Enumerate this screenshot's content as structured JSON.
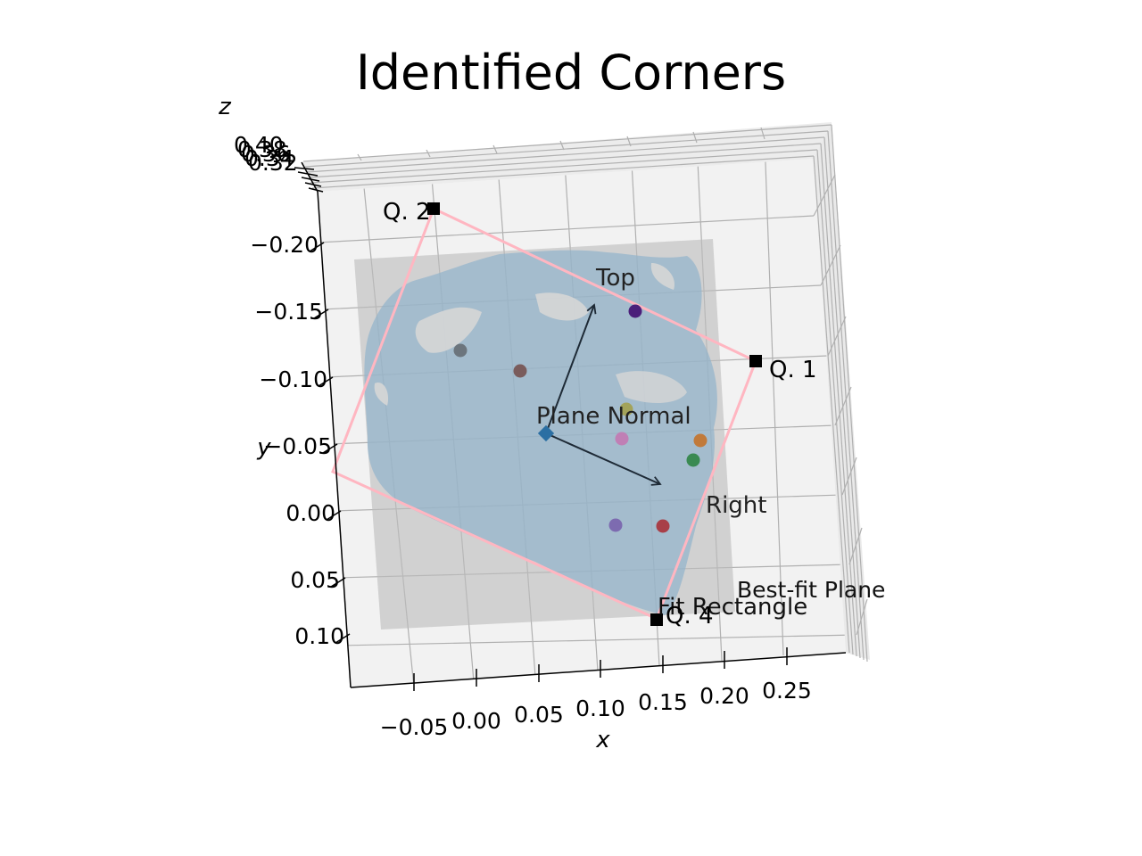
{
  "chart_data": {
    "type": "scatter",
    "projection": "3d",
    "title": "Identified Corners",
    "xlabel": "x",
    "ylabel": "y",
    "zlabel": "z",
    "x_ticks": [
      "−0.05",
      "0.00",
      "0.05",
      "0.10",
      "0.15",
      "0.20",
      "0.25"
    ],
    "y_ticks": [
      "−0.20",
      "−0.15",
      "−0.10",
      "−0.05",
      "0.00",
      "0.05",
      "0.10"
    ],
    "z_ticks": [
      "0.40",
      "0.38",
      "0.36",
      "0.34",
      "0.32"
    ],
    "grid": true,
    "series": [
      {
        "name": "Best-fit Plane",
        "kind": "surface",
        "color": "#bdbdbd"
      },
      {
        "name": "Fit Rectangle",
        "kind": "line",
        "color": "#ffb6c1"
      }
    ],
    "point_cloud_color": "#8fb3cc",
    "corners": [
      {
        "label": "Q. 1",
        "x": 0.24,
        "y": -0.11
      },
      {
        "label": "Q. 2",
        "x": -0.05,
        "y": -0.22
      },
      {
        "label": "Q. 4",
        "x": 0.14,
        "y": 0.11
      }
    ],
    "fit_rectangle_vertex_3": {
      "x": -0.1,
      "y": -0.02
    },
    "cluster_points": [
      {
        "color": "#4b1f7a",
        "x": 0.12,
        "y": -0.16
      },
      {
        "color": "#6c757d",
        "x": -0.03,
        "y": -0.12
      },
      {
        "color": "#7a5c5c",
        "x": 0.03,
        "y": -0.11
      },
      {
        "color": "#a3a35a",
        "x": 0.11,
        "y": -0.07
      },
      {
        "color": "#c07fb5",
        "x": 0.11,
        "y": -0.05
      },
      {
        "color": "#c17a3a",
        "x": 0.18,
        "y": -0.05
      },
      {
        "color": "#3a8a52",
        "x": 0.17,
        "y": -0.04
      },
      {
        "color": "#7d6bb0",
        "x": 0.1,
        "y": 0.0
      },
      {
        "color": "#a83f48",
        "x": 0.14,
        "y": 0.0
      }
    ],
    "plane_center": {
      "x": 0.03,
      "y": -0.05,
      "color": "#2b6fa3"
    },
    "vectors": [
      {
        "label": "Plane Normal",
        "x": 0.03,
        "y": -0.05
      },
      {
        "label": "Top",
        "x": 0.08,
        "y": -0.16
      },
      {
        "label": "Right",
        "x": 0.13,
        "y": -0.02
      }
    ]
  }
}
